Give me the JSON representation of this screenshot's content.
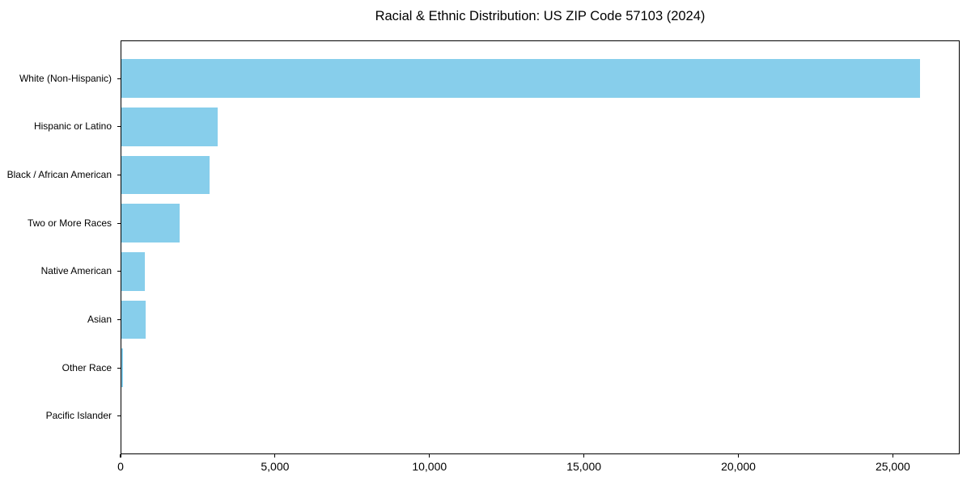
{
  "title": "Racial & Ethnic Distribution: US ZIP Code 57103 (2024)",
  "colors": {
    "bar": "#87CEEB",
    "axis": "#000000",
    "text": "#000000",
    "background": "#FFFFFF"
  },
  "chart_data": {
    "type": "bar",
    "orientation": "horizontal",
    "title": "Racial & Ethnic Distribution: US ZIP Code 57103 (2024)",
    "categories": [
      "White (Non-Hispanic)",
      "Hispanic or Latino",
      "Black / African American",
      "Two or More Races",
      "Native American",
      "Asian",
      "Other Race",
      "Pacific Islander"
    ],
    "values": [
      25870,
      3150,
      2880,
      1910,
      790,
      815,
      80,
      15
    ],
    "xlabel": "",
    "ylabel": "",
    "xlim": [
      0,
      27164
    ],
    "xticks": [
      0,
      5000,
      10000,
      15000,
      20000,
      25000
    ],
    "xtick_labels": [
      "0",
      "5,000",
      "10,000",
      "15,000",
      "20,000",
      "25,000"
    ],
    "grid": false,
    "legend": null,
    "bar_color": "#87CEEB"
  }
}
